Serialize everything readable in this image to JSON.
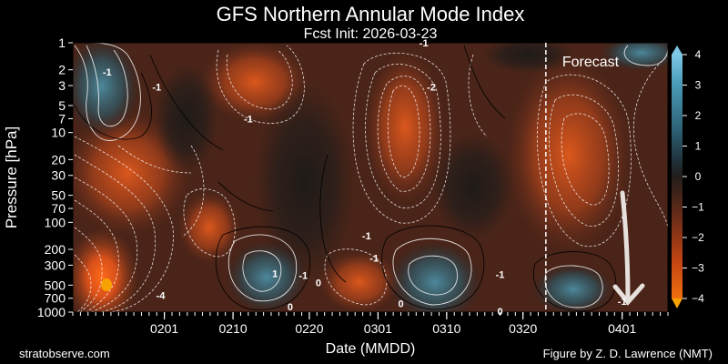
{
  "chart_data": {
    "type": "heatmap",
    "title": "GFS Northern Annular Mode Index",
    "subtitle": "Fcst Init: 2026-03-23",
    "xlabel": "Date (MMDD)",
    "ylabel": "Pressure [hPa]",
    "x_start": "0120",
    "x_end": "0407",
    "x_tick_labels": [
      "0201",
      "0210",
      "0220",
      "0301",
      "0310",
      "0320",
      "0401"
    ],
    "x_tick_day_offsets": [
      12,
      21,
      31,
      40,
      49,
      59,
      72
    ],
    "x_range_days": [
      0,
      78
    ],
    "y_scale": "log",
    "y_tick_labels": [
      "1",
      "2",
      "3",
      "5",
      "7",
      "10",
      "20",
      "30",
      "50",
      "70",
      "100",
      "200",
      "300",
      "500",
      "700",
      "1000"
    ],
    "y_tick_values": [
      1,
      2,
      3,
      5,
      7,
      10,
      20,
      30,
      50,
      70,
      100,
      200,
      300,
      500,
      700,
      1000
    ],
    "ylim": [
      1000,
      1
    ],
    "forecast_start_day": 62,
    "forecast_label": "Forecast",
    "colorbar": {
      "range": [
        -4,
        4
      ],
      "tick_labels": [
        "4",
        "3",
        "2",
        "1",
        "0",
        "−1",
        "−2",
        "−3",
        "−4"
      ],
      "tick_values": [
        4,
        3,
        2,
        1,
        0,
        -1,
        -2,
        -3,
        -4
      ]
    },
    "contour_labels": [
      {
        "text": "-1",
        "day": 4.5,
        "hpa": 2.1
      },
      {
        "text": "-1",
        "day": 11.0,
        "hpa": 3.1
      },
      {
        "text": "-4",
        "day": 11.5,
        "hpa": 650
      },
      {
        "text": "-1",
        "day": 46.0,
        "hpa": 1.0
      },
      {
        "text": "-2",
        "day": 47.0,
        "hpa": 3.1
      },
      {
        "text": "-1",
        "day": 23.0,
        "hpa": 7.0
      },
      {
        "text": "1",
        "day": 26.5,
        "hpa": 370
      },
      {
        "text": "-1",
        "day": 30.2,
        "hpa": 390
      },
      {
        "text": "0",
        "day": 32.2,
        "hpa": 470
      },
      {
        "text": "0",
        "day": 28.5,
        "hpa": 870
      },
      {
        "text": "-1",
        "day": 38.5,
        "hpa": 140
      },
      {
        "text": "-1",
        "day": 39.5,
        "hpa": 250
      },
      {
        "text": "-1",
        "day": 56.0,
        "hpa": 380
      },
      {
        "text": "0",
        "day": 43.0,
        "hpa": 800
      },
      {
        "text": "0",
        "day": 56.0,
        "hpa": 980
      },
      {
        "text": "-1",
        "day": 72.0,
        "hpa": 760
      }
    ]
  },
  "credits": {
    "left": "stratobserve.com",
    "right": "Figure by Z. D. Lawrence (NMT)"
  },
  "colors": {
    "negative_max": "#f7a200",
    "negative": "#e04b10",
    "negative_dark": "#4a2418",
    "neutral": "#241e1b",
    "positive_dark": "#1e2c32",
    "positive": "#4690a8",
    "positive_max": "#7dc8e6"
  }
}
